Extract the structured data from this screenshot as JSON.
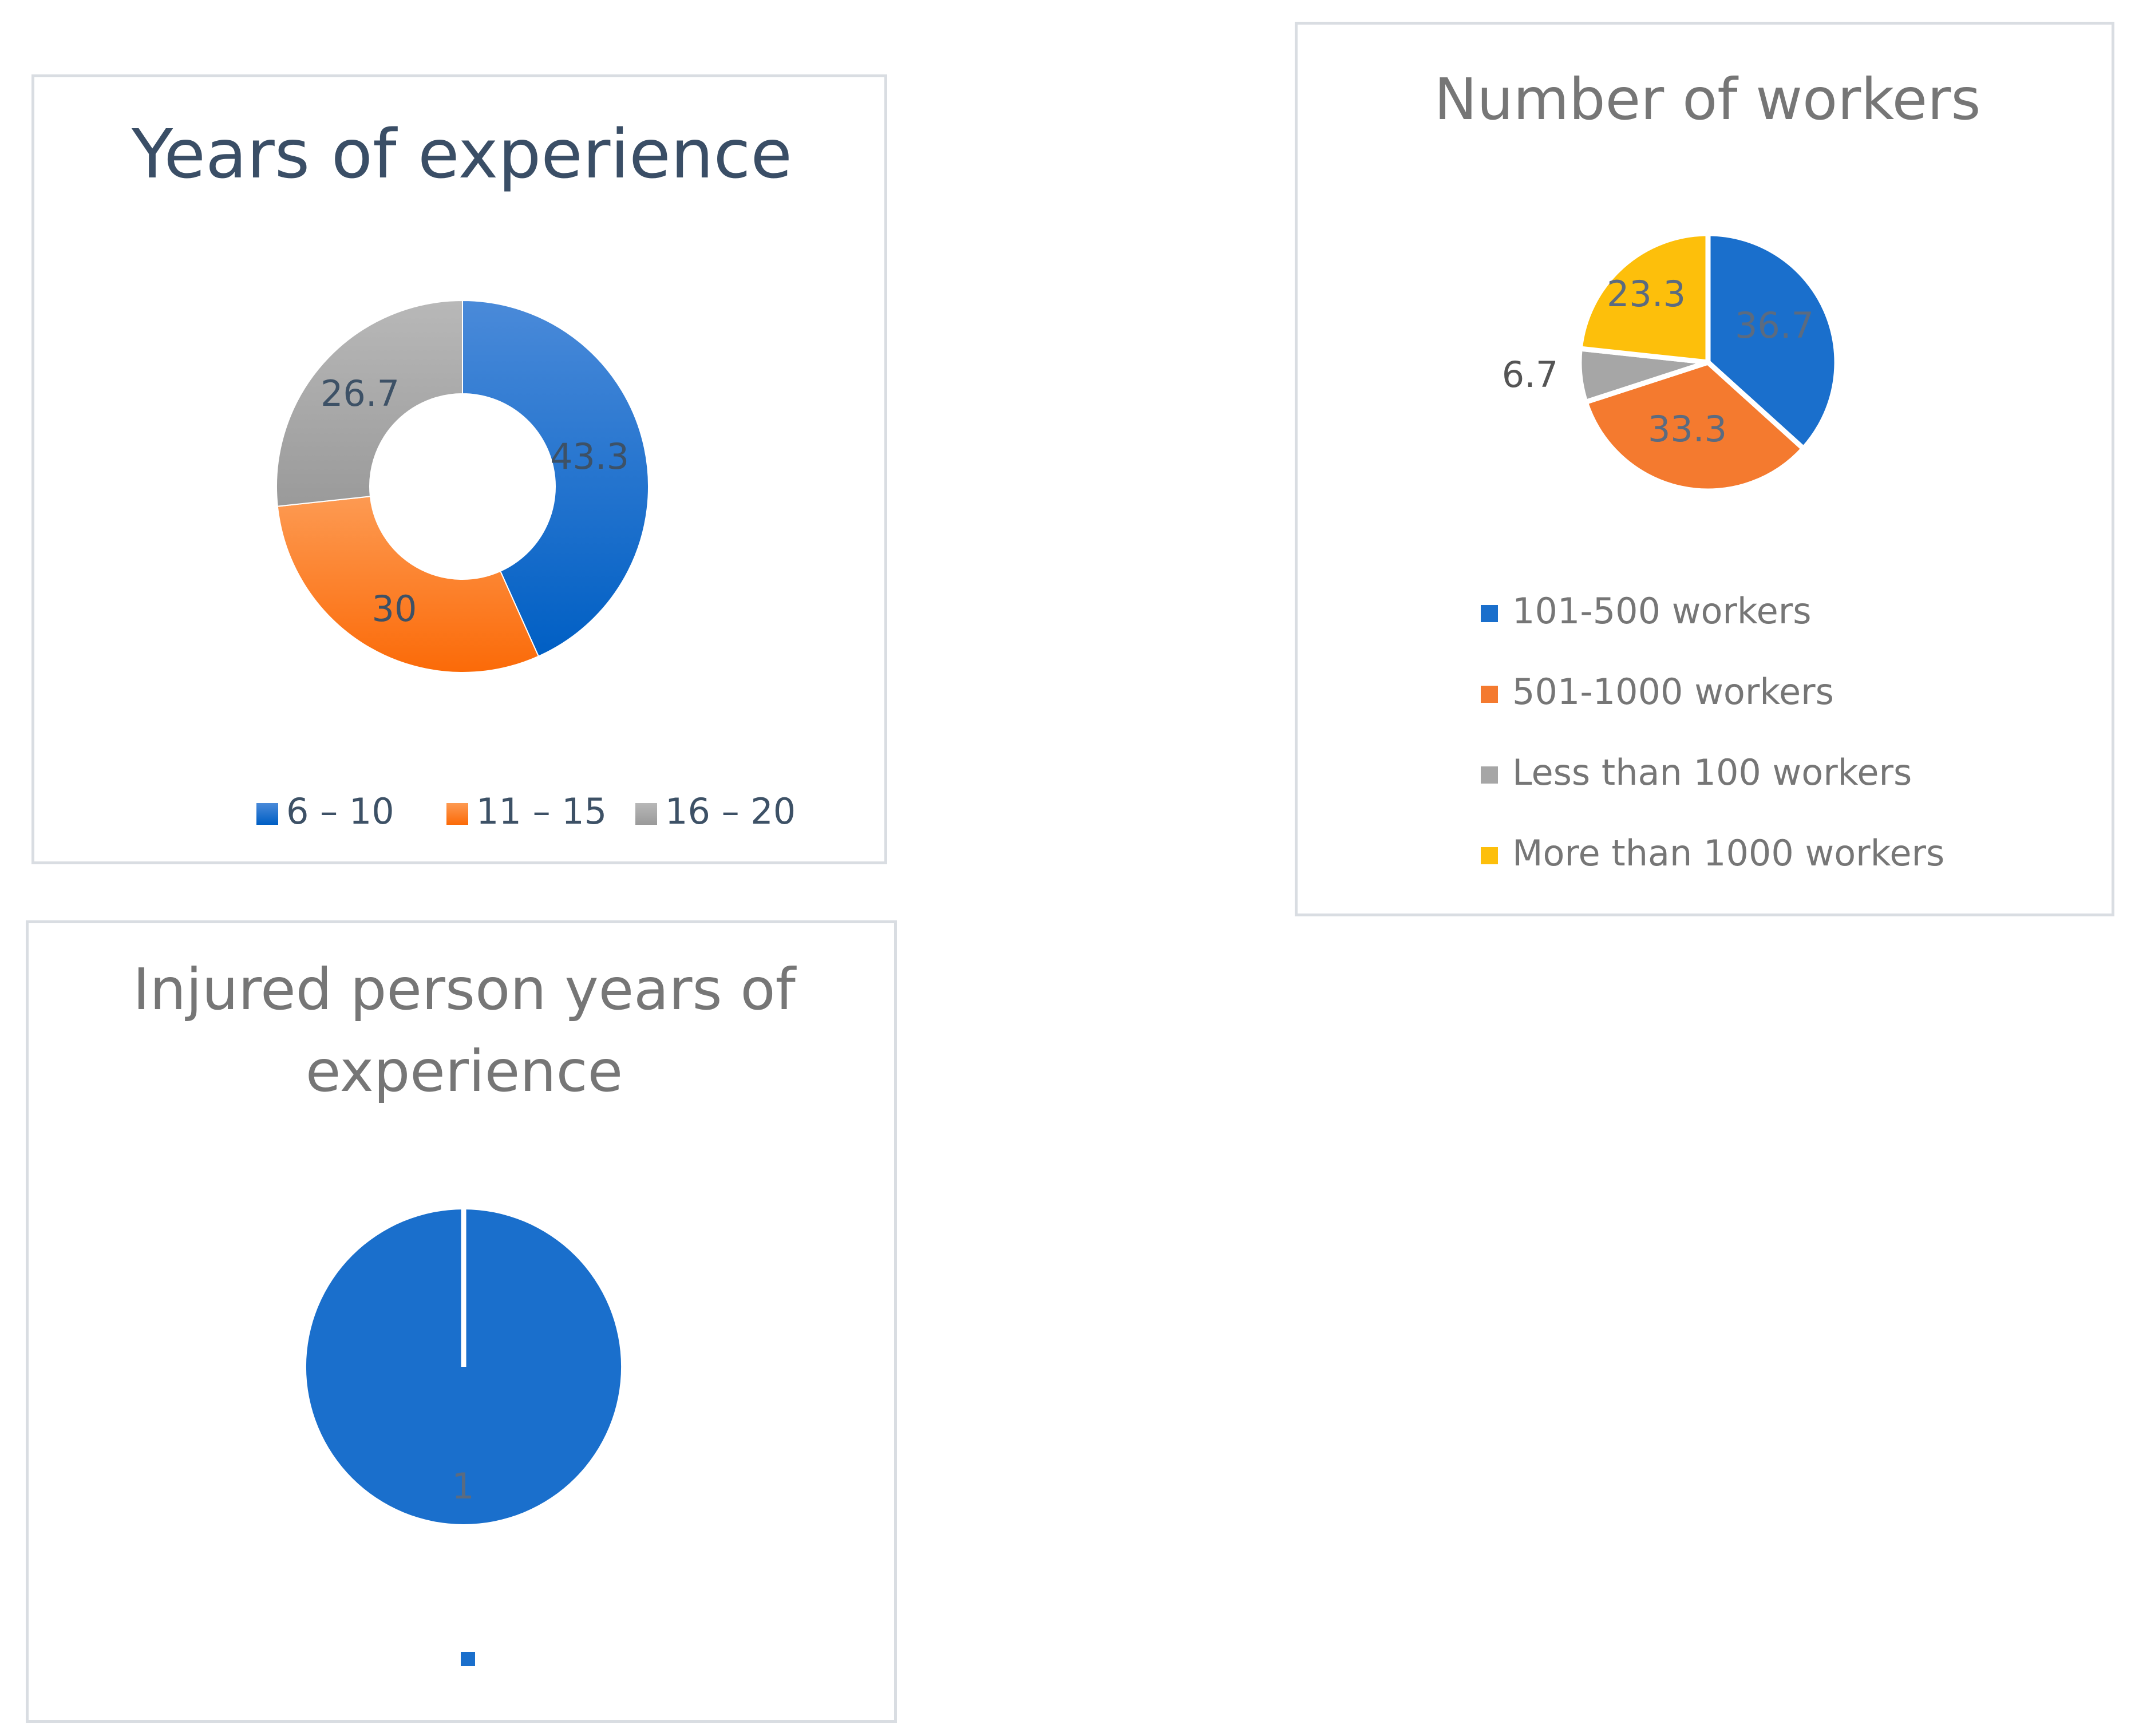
{
  "chart_data": [
    {
      "type": "pie",
      "subtype": "donut",
      "title": "Years of experience",
      "categories": [
        "6 – 10",
        "11 – 15",
        "16 – 20"
      ],
      "values": [
        43.3,
        30,
        26.7
      ],
      "data_labels": [
        "43.3",
        "30",
        "26.7"
      ],
      "colors": [
        "#1a6fcc",
        "#fb7a2b",
        "#a6a6a6"
      ],
      "legend_position": "bottom",
      "title_color": "#3a4e66"
    },
    {
      "type": "pie",
      "title": "Number of workers",
      "categories": [
        "101-500 workers",
        "501-1000 workers",
        "Less than 100 workers",
        "More than 1000 workers"
      ],
      "values": [
        36.7,
        33.3,
        6.7,
        23.3
      ],
      "data_labels": [
        "36.7",
        "33.3",
        "6.7",
        "23.3"
      ],
      "colors": [
        "#1a6fcc",
        "#f47a2f",
        "#a6a6a6",
        "#fdbf0b"
      ],
      "legend_position": "bottom",
      "title_color": "#767676"
    },
    {
      "type": "pie",
      "title": "Injured person years of experience",
      "title_lines": [
        "Injured person years of",
        "experience"
      ],
      "categories": [
        ""
      ],
      "values": [
        1
      ],
      "data_labels": [
        "1"
      ],
      "colors": [
        "#1a6fcc"
      ],
      "legend_position": "bottom",
      "title_color": "#767676"
    }
  ]
}
